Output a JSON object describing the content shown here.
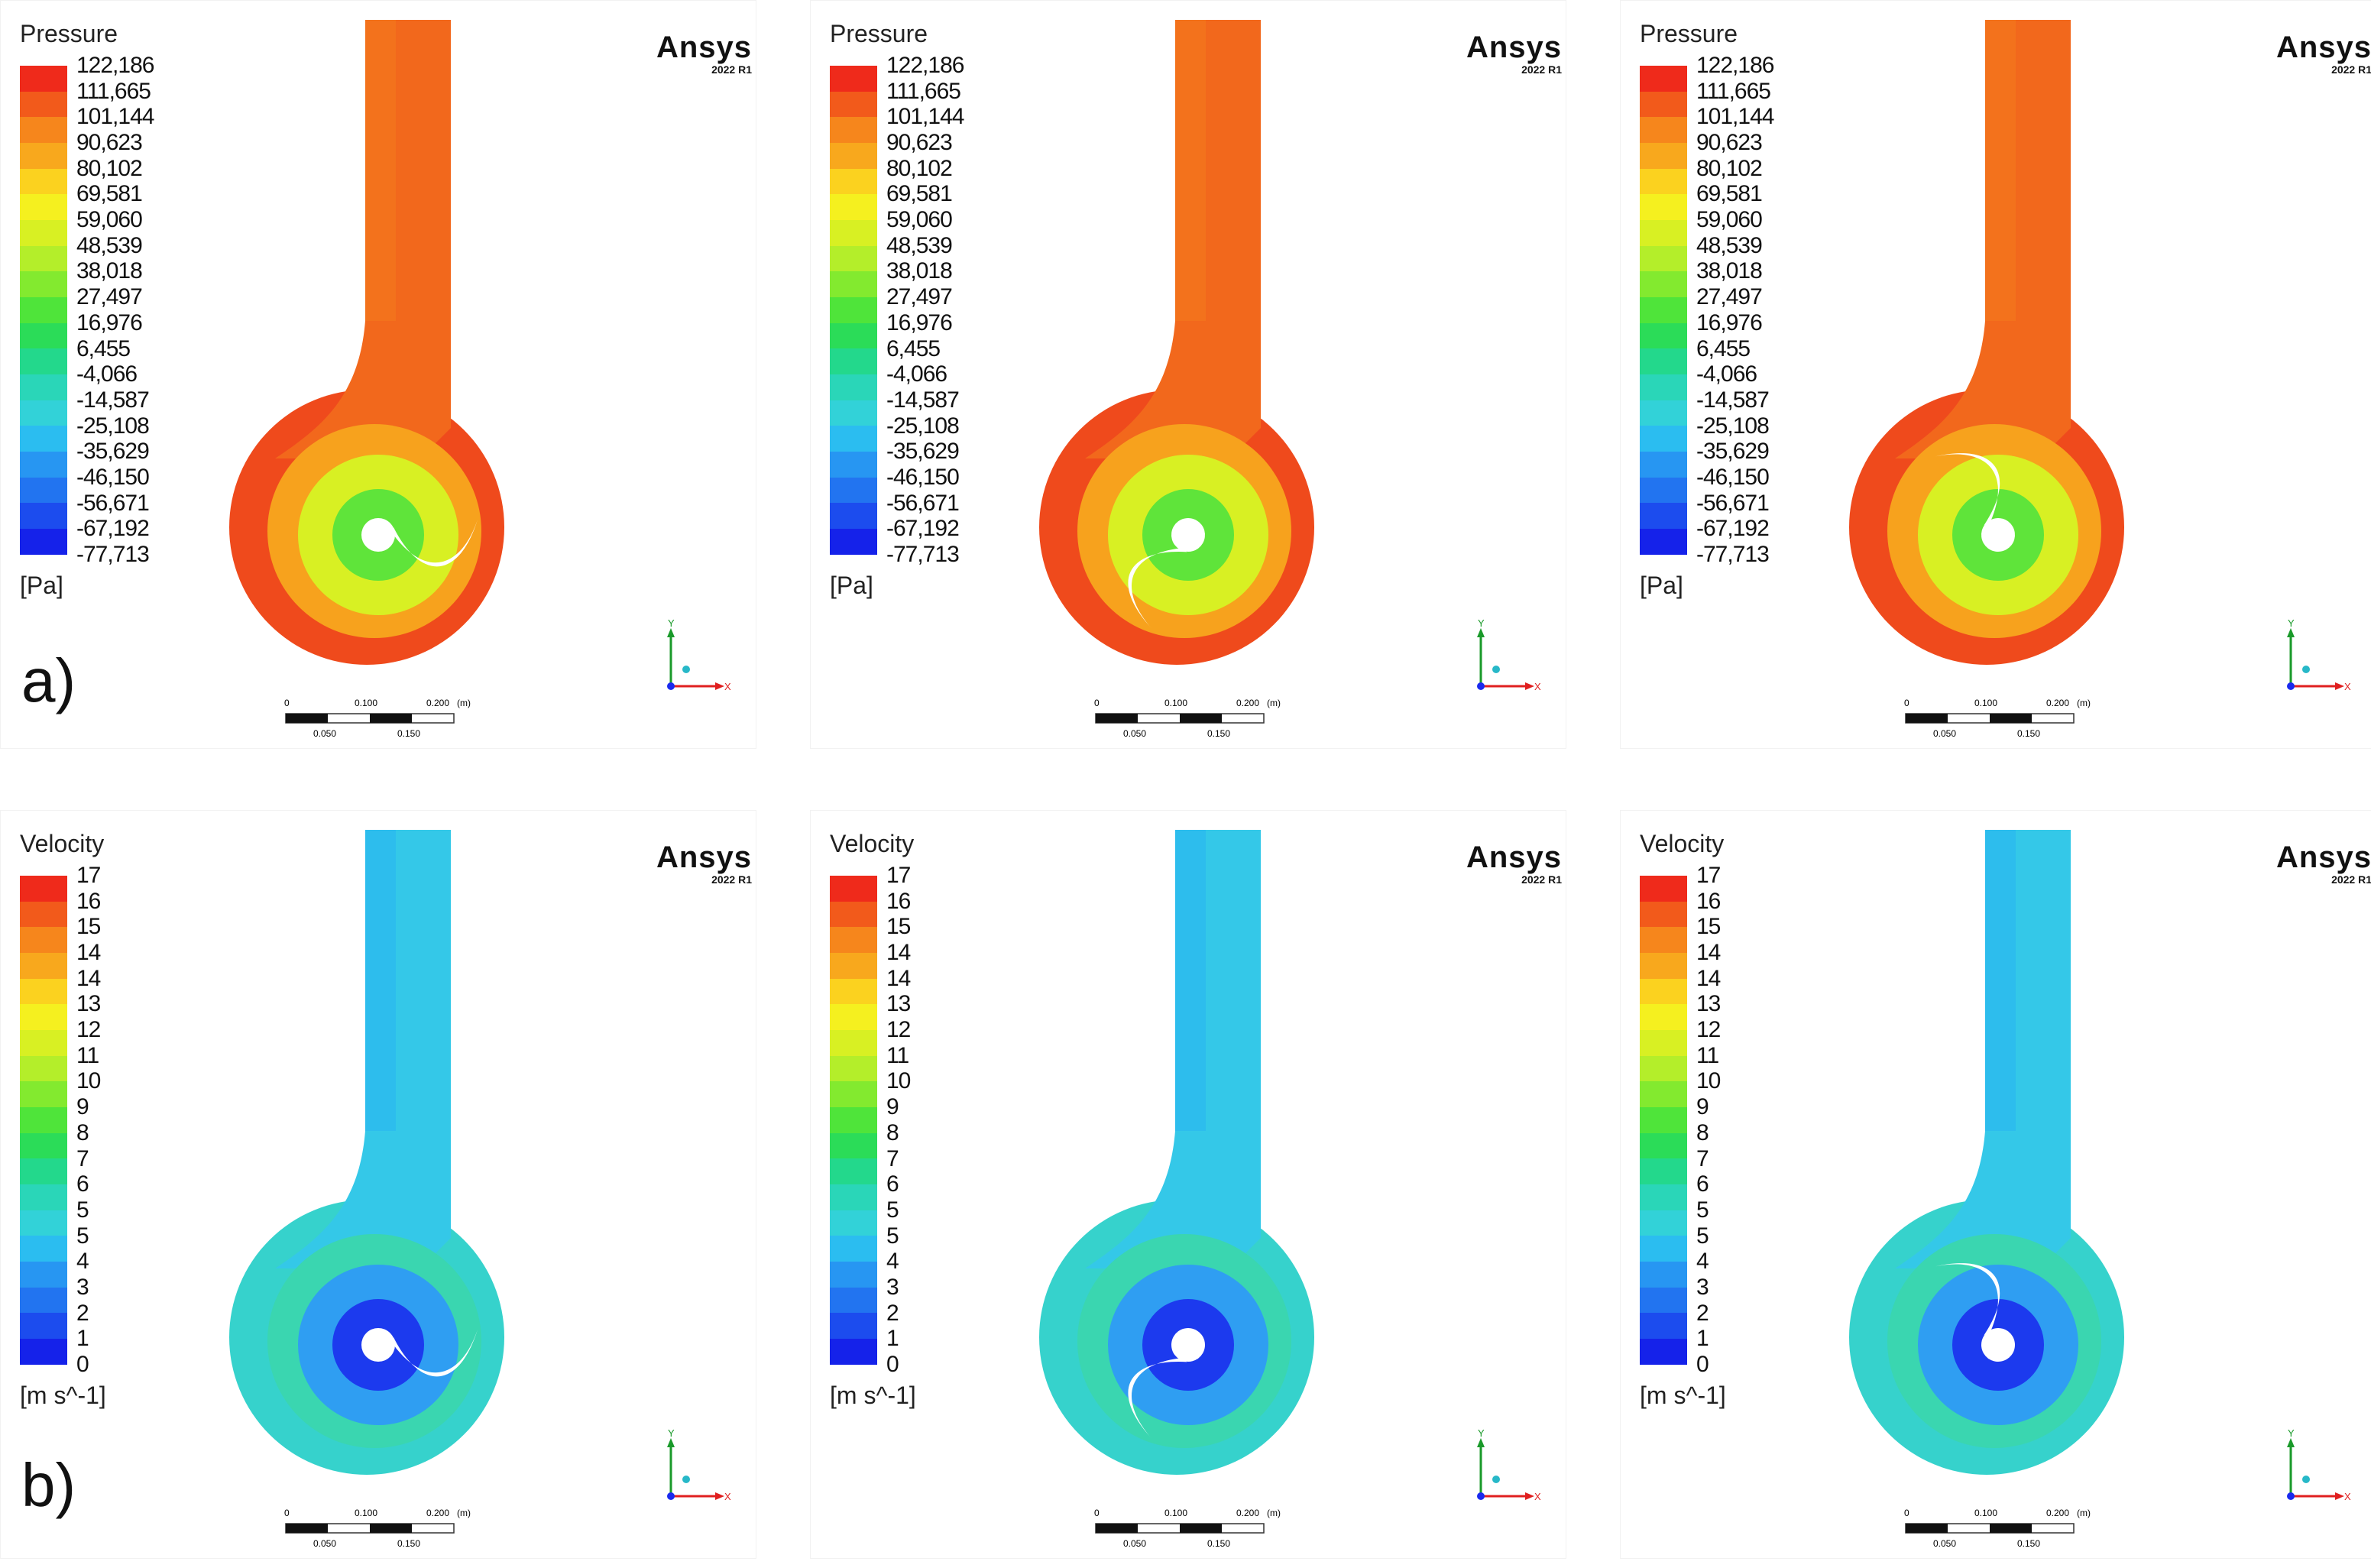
{
  "figure": {
    "row_labels": [
      "a)",
      "b)"
    ],
    "software": {
      "name": "Ansys",
      "version": "2022 R1"
    },
    "scale_bar": {
      "top_ticks": [
        "0",
        "0.100",
        "0.200",
        "(m)"
      ],
      "bottom_ticks": [
        "0.050",
        "0.150"
      ]
    },
    "axes": {
      "y": "Y",
      "x": "X"
    }
  },
  "pressure_legend": {
    "title": "Pressure",
    "unit": "[Pa]",
    "ticks": [
      "122,186",
      "111,665",
      "101,144",
      "90,623",
      "80,102",
      "69,581",
      "59,060",
      "48,539",
      "38,018",
      "27,497",
      "16,976",
      "6,455",
      "-4,066",
      "-14,587",
      "-25,108",
      "-35,629",
      "-46,150",
      "-56,671",
      "-67,192",
      "-77,713"
    ]
  },
  "velocity_legend": {
    "title": "Velocity",
    "unit": "[m s^-1]",
    "ticks": [
      "17",
      "16",
      "15",
      "14",
      "14",
      "13",
      "12",
      "11",
      "10",
      "9",
      "8",
      "7",
      "6",
      "5",
      "5",
      "4",
      "3",
      "2",
      "1",
      "0"
    ]
  },
  "colormap": [
    "#ef2a1b",
    "#f25a1b",
    "#f6861c",
    "#f8a81d",
    "#fbd21f",
    "#f5f01f",
    "#d8f023",
    "#b4ee2a",
    "#83ea2f",
    "#4fe43a",
    "#2bdc58",
    "#23d88c",
    "#2ad6b8",
    "#32d2d8",
    "#2bbdf0",
    "#2796f2",
    "#2274f0",
    "#1c4cee",
    "#1522ea"
  ]
}
